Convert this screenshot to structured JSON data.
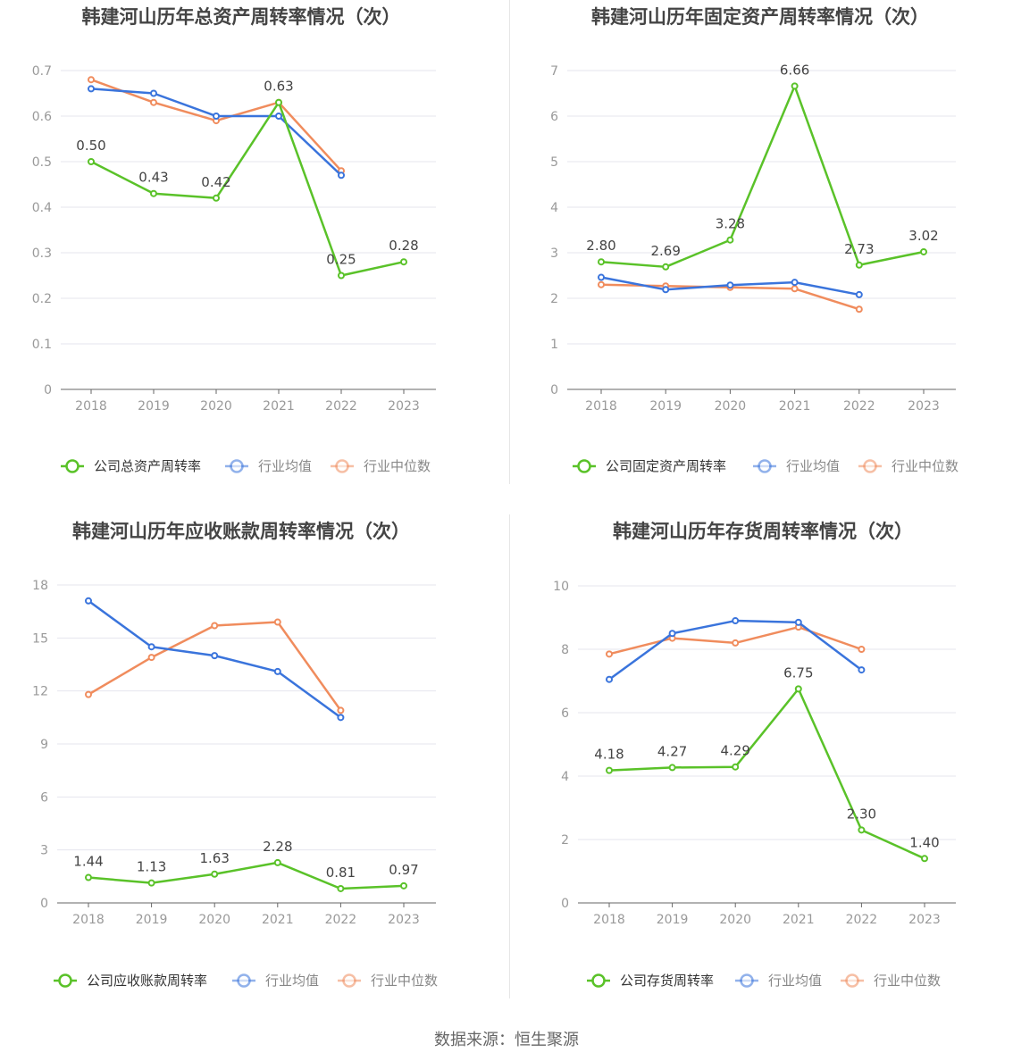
{
  "source_text": "数据来源：恒生聚源",
  "colors": {
    "company": "#5ac229",
    "avg": "#3a74dc",
    "median": "#f08c5d",
    "grid": "#e4e4ee",
    "axis": "#666666",
    "tick": "#999999",
    "title": "#444444",
    "label": "#444444"
  },
  "chart_data": [
    {
      "type": "line",
      "title": "韩建河山历年总资产周转率情况（次）",
      "categories": [
        "2018",
        "2019",
        "2020",
        "2021",
        "2022",
        "2023"
      ],
      "ylim": [
        0,
        0.7
      ],
      "yticks": [
        0,
        0.1,
        0.2,
        0.3,
        0.4,
        0.5,
        0.6,
        0.7
      ],
      "ytick_labels": [
        "0",
        "0.1",
        "0.2",
        "0.3",
        "0.4",
        "0.5",
        "0.6",
        "0.7"
      ],
      "grid": true,
      "legend_position": "bottom",
      "series": [
        {
          "name": "公司总资产周转率",
          "values": [
            0.5,
            0.43,
            0.42,
            0.63,
            0.25,
            0.28
          ],
          "labels": [
            "0.50",
            "0.43",
            "0.42",
            "0.63",
            "0.25",
            "0.28"
          ]
        },
        {
          "name": "行业均值",
          "values": [
            0.66,
            0.65,
            0.6,
            0.6,
            0.47,
            null
          ]
        },
        {
          "name": "行业中位数",
          "values": [
            0.68,
            0.63,
            0.59,
            0.63,
            0.48,
            null
          ]
        }
      ]
    },
    {
      "type": "line",
      "title": "韩建河山历年固定资产周转率情况（次）",
      "categories": [
        "2018",
        "2019",
        "2020",
        "2021",
        "2022",
        "2023"
      ],
      "ylim": [
        0,
        7
      ],
      "yticks": [
        0,
        1,
        2,
        3,
        4,
        5,
        6,
        7
      ],
      "ytick_labels": [
        "0",
        "1",
        "2",
        "3",
        "4",
        "5",
        "6",
        "7"
      ],
      "grid": true,
      "legend_position": "bottom",
      "series": [
        {
          "name": "公司固定资产周转率",
          "values": [
            2.8,
            2.69,
            3.28,
            6.66,
            2.73,
            3.02
          ],
          "labels": [
            "2.80",
            "2.69",
            "3.28",
            "6.66",
            "2.73",
            "3.02"
          ]
        },
        {
          "name": "行业均值",
          "values": [
            2.46,
            2.19,
            2.29,
            2.35,
            2.08,
            null
          ]
        },
        {
          "name": "行业中位数",
          "values": [
            2.3,
            2.27,
            2.24,
            2.21,
            1.76,
            null
          ]
        }
      ]
    },
    {
      "type": "line",
      "title": "韩建河山历年应收账款周转率情况（次）",
      "categories": [
        "2018",
        "2019",
        "2020",
        "2021",
        "2022",
        "2023"
      ],
      "ylim": [
        0,
        18
      ],
      "yticks": [
        0,
        3,
        6,
        9,
        12,
        15,
        18
      ],
      "ytick_labels": [
        "0",
        "3",
        "6",
        "9",
        "12",
        "15",
        "18"
      ],
      "grid": true,
      "legend_position": "bottom",
      "series": [
        {
          "name": "公司应收账款周转率",
          "values": [
            1.44,
            1.13,
            1.63,
            2.28,
            0.81,
            0.97
          ],
          "labels": [
            "1.44",
            "1.13",
            "1.63",
            "2.28",
            "0.81",
            "0.97"
          ]
        },
        {
          "name": "行业均值",
          "values": [
            17.1,
            14.5,
            14.0,
            13.1,
            10.5,
            null
          ]
        },
        {
          "name": "行业中位数",
          "values": [
            11.8,
            13.9,
            15.7,
            15.9,
            10.9,
            null
          ]
        }
      ]
    },
    {
      "type": "line",
      "title": "韩建河山历年存货周转率情况（次）",
      "categories": [
        "2018",
        "2019",
        "2020",
        "2021",
        "2022",
        "2023"
      ],
      "ylim": [
        0,
        10
      ],
      "yticks": [
        0,
        2,
        4,
        6,
        8,
        10
      ],
      "ytick_labels": [
        "0",
        "2",
        "4",
        "6",
        "8",
        "10"
      ],
      "grid": true,
      "legend_position": "bottom",
      "series": [
        {
          "name": "公司存货周转率",
          "values": [
            4.18,
            4.27,
            4.29,
            6.75,
            2.3,
            1.4
          ],
          "labels": [
            "4.18",
            "4.27",
            "4.29",
            "6.75",
            "2.30",
            "1.40"
          ]
        },
        {
          "name": "行业均值",
          "values": [
            7.05,
            8.5,
            8.9,
            8.85,
            7.35,
            null
          ]
        },
        {
          "name": "行业中位数",
          "values": [
            7.85,
            8.35,
            8.2,
            8.7,
            8.0,
            null
          ]
        }
      ]
    }
  ]
}
